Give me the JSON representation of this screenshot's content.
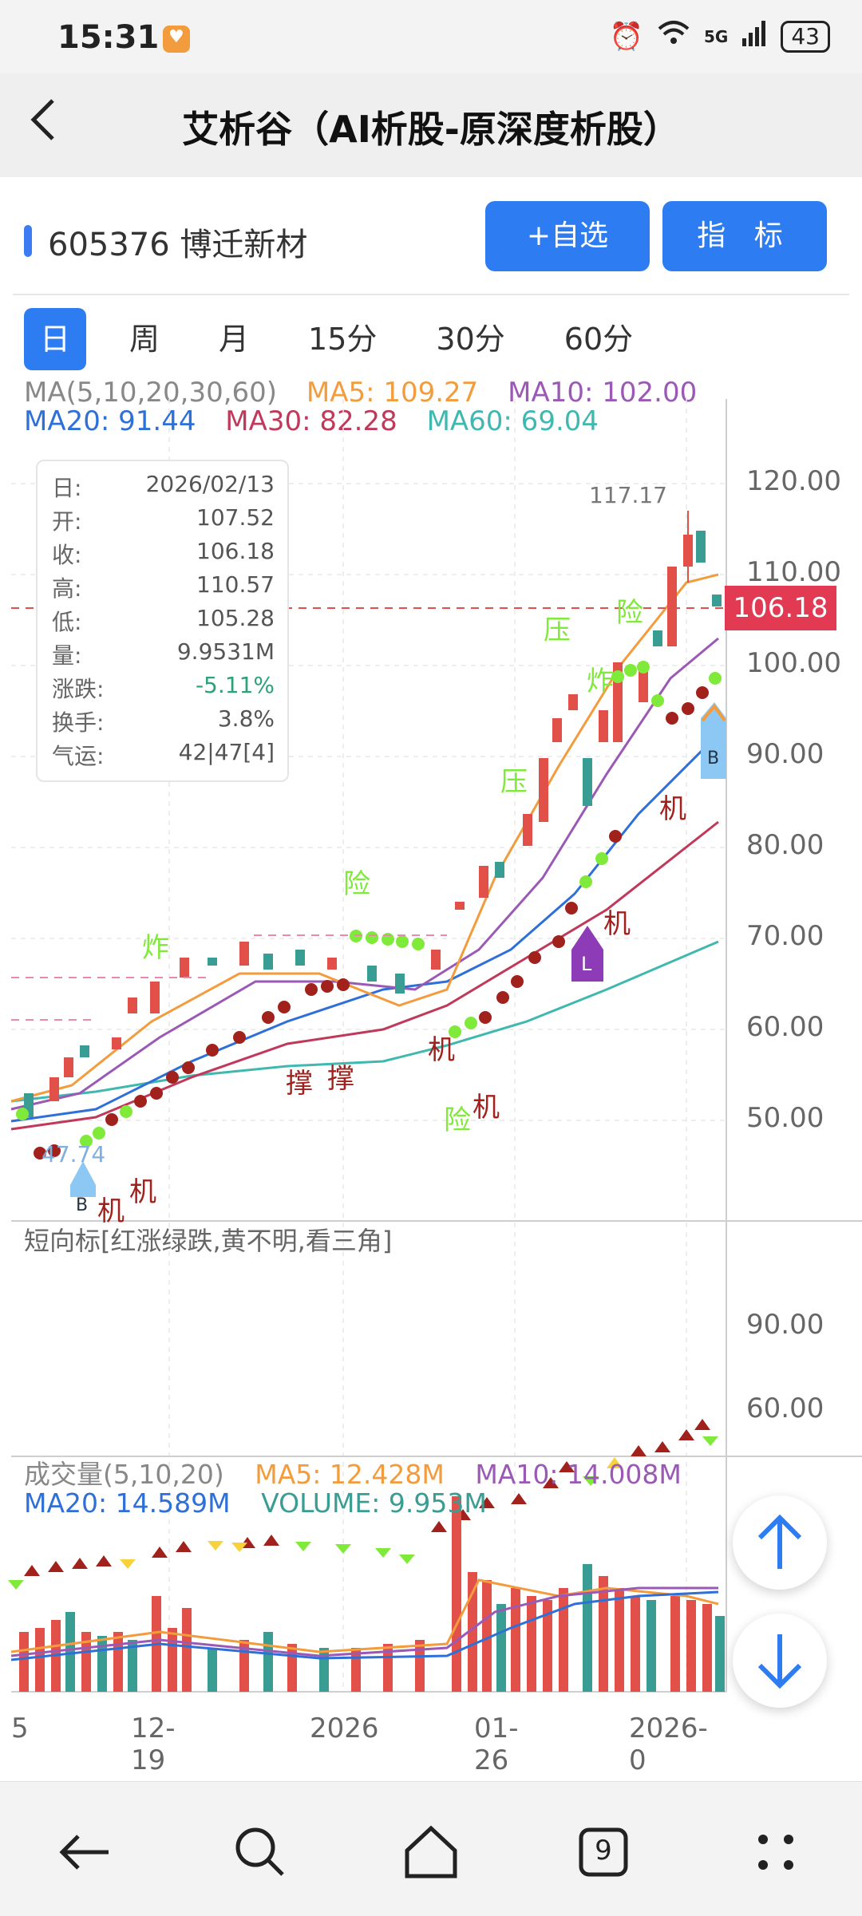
{
  "status_bar": {
    "time": "15:31",
    "network": "5G",
    "battery": "43"
  },
  "title_bar": {
    "title": "艾析谷（AI析股-原深度析股）"
  },
  "stock": {
    "code_name": "605376 博迁新材",
    "watch_button": "+自选",
    "indicator_button": "指 标"
  },
  "period_tabs": [
    {
      "label": "日",
      "active": true
    },
    {
      "label": "周",
      "active": false
    },
    {
      "label": "月",
      "active": false
    },
    {
      "label": "15分",
      "active": false
    },
    {
      "label": "30分",
      "active": false
    },
    {
      "label": "60分",
      "active": false
    }
  ],
  "ma_legend": [
    {
      "label": "MA(5,10,20,30,60)",
      "color": "#888888"
    },
    {
      "label": "MA5: 109.27",
      "color": "#f39c3d"
    },
    {
      "label": "MA10: 102.00",
      "color": "#9b59b6"
    },
    {
      "label": "MA20: 91.44",
      "color": "#2e6fd8"
    },
    {
      "label": "MA30: 82.28",
      "color": "#c0395b"
    },
    {
      "label": "MA60: 69.04",
      "color": "#3fb8b0"
    }
  ],
  "info_box": [
    {
      "label": "日:",
      "value": "2026/02/13"
    },
    {
      "label": "开:",
      "value": "107.52"
    },
    {
      "label": "收:",
      "value": "106.18"
    },
    {
      "label": "高:",
      "value": "110.57"
    },
    {
      "label": "低:",
      "value": "105.28"
    },
    {
      "label": "量:",
      "value": "9.9531M"
    },
    {
      "label": "涨跌:",
      "value": "-5.11%",
      "color": "#2aa37a"
    },
    {
      "label": "换手:",
      "value": "3.8%"
    },
    {
      "label": "气运:",
      "value": "42|47[4]"
    }
  ],
  "price_chart": {
    "y_ticks": [
      "120.00",
      "110.00",
      "100.00",
      "90.00",
      "80.00",
      "70.00",
      "60.00",
      "50.00"
    ],
    "current_price": "106.18",
    "high_marker": "117.17",
    "low_marker": "47.74",
    "signal_labels": [
      "炸",
      "险",
      "压",
      "压",
      "炸",
      "险",
      "机",
      "机",
      "机",
      "机",
      "机",
      "撑",
      "撑",
      "险",
      "机"
    ],
    "badges": [
      "B",
      "L",
      "B"
    ]
  },
  "sub_indicator": {
    "title": "短向标[红涨绿跌,黄不明,看三角]",
    "y_ticks": [
      "90.00",
      "60.00"
    ]
  },
  "volume_legend": [
    {
      "label": "成交量(5,10,20)",
      "color": "#888888"
    },
    {
      "label": "MA5: 12.428M",
      "color": "#f39c3d"
    },
    {
      "label": "MA10: 14.008M",
      "color": "#9b59b6"
    },
    {
      "label": "MA20: 14.589M",
      "color": "#2e6fd8"
    },
    {
      "label": "VOLUME: 9.953M",
      "color": "#3a9d94"
    }
  ],
  "x_axis": [
    "5",
    "12-19",
    "2026",
    "01-26",
    "2026-0"
  ],
  "colors": {
    "up": "#e2504a",
    "down": "#3a9d94",
    "accent": "#2e7cf2"
  },
  "nav_icons": [
    "back-icon",
    "search-icon",
    "home-icon",
    "tabs-icon",
    "menu-icon"
  ],
  "nav_tabs_count": "9"
}
